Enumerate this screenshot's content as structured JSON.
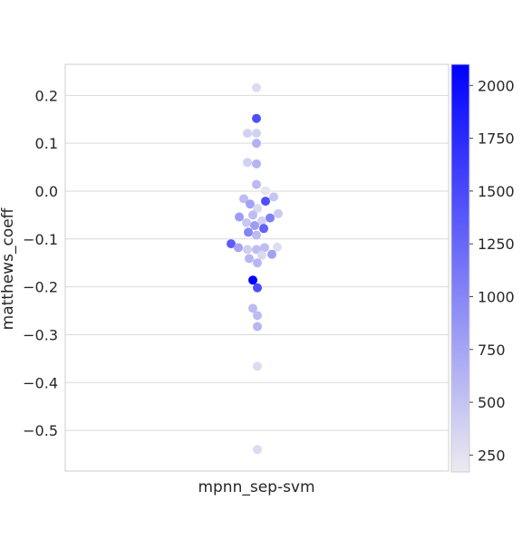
{
  "chart_data": {
    "type": "scatter",
    "subtype": "swarm",
    "category": "mpnn_sep-svm",
    "ylabel": "matthews_coeff",
    "xlabel": "",
    "ylim": [
      -0.585,
      0.265
    ],
    "y_ticks": [
      {
        "value": 0.2,
        "label": "0.2"
      },
      {
        "value": 0.1,
        "label": "0.1"
      },
      {
        "value": 0.0,
        "label": "0.0"
      },
      {
        "value": -0.1,
        "label": "−0.1"
      },
      {
        "value": -0.2,
        "label": "−0.2"
      },
      {
        "value": -0.3,
        "label": "−0.3"
      },
      {
        "value": -0.4,
        "label": "−0.4"
      },
      {
        "value": -0.5,
        "label": "−0.5"
      }
    ],
    "grid": true,
    "colorbar": {
      "range": [
        170,
        2100
      ],
      "ticks": [
        {
          "value": 2000,
          "label": "2000"
        },
        {
          "value": 1750,
          "label": "1750"
        },
        {
          "value": 1500,
          "label": "1500"
        },
        {
          "value": 1250,
          "label": "1250"
        },
        {
          "value": 1000,
          "label": "1000"
        },
        {
          "value": 750,
          "label": "750"
        },
        {
          "value": 500,
          "label": "500"
        },
        {
          "value": 250,
          "label": "250"
        }
      ],
      "color_low": "#ecebf0",
      "color_high": "#0000ff"
    },
    "points": [
      {
        "y": 0.216,
        "c": 300,
        "offset": 0
      },
      {
        "y": 0.152,
        "c": 1450,
        "offset": 0
      },
      {
        "y": 0.121,
        "c": 380,
        "offset": -10
      },
      {
        "y": 0.121,
        "c": 380,
        "offset": 0
      },
      {
        "y": 0.1,
        "c": 650,
        "offset": 0
      },
      {
        "y": 0.06,
        "c": 380,
        "offset": -10
      },
      {
        "y": 0.057,
        "c": 620,
        "offset": 0
      },
      {
        "y": 0.014,
        "c": 570,
        "offset": 0
      },
      {
        "y": 0.001,
        "c": 220,
        "offset": 10
      },
      {
        "y": -0.012,
        "c": 470,
        "offset": 19
      },
      {
        "y": -0.016,
        "c": 560,
        "offset": -14
      },
      {
        "y": -0.021,
        "c": 1450,
        "offset": 10
      },
      {
        "y": -0.027,
        "c": 780,
        "offset": -7
      },
      {
        "y": -0.036,
        "c": 320,
        "offset": 1
      },
      {
        "y": -0.047,
        "c": 440,
        "offset": 24
      },
      {
        "y": -0.05,
        "c": 550,
        "offset": -4
      },
      {
        "y": -0.054,
        "c": 820,
        "offset": -19
      },
      {
        "y": -0.056,
        "c": 1050,
        "offset": 15
      },
      {
        "y": -0.062,
        "c": 380,
        "offset": 6
      },
      {
        "y": -0.066,
        "c": 460,
        "offset": -11
      },
      {
        "y": -0.072,
        "c": 820,
        "offset": -2
      },
      {
        "y": -0.078,
        "c": 1300,
        "offset": 8
      },
      {
        "y": -0.086,
        "c": 1000,
        "offset": -9
      },
      {
        "y": -0.092,
        "c": 560,
        "offset": 0
      },
      {
        "y": -0.11,
        "c": 1350,
        "offset": -28
      },
      {
        "y": -0.117,
        "c": 280,
        "offset": 23
      },
      {
        "y": -0.118,
        "c": 750,
        "offset": -20
      },
      {
        "y": -0.118,
        "c": 550,
        "offset": 9
      },
      {
        "y": -0.122,
        "c": 400,
        "offset": -10
      },
      {
        "y": -0.122,
        "c": 550,
        "offset": 0
      },
      {
        "y": -0.132,
        "c": 780,
        "offset": 17
      },
      {
        "y": -0.134,
        "c": 320,
        "offset": 6
      },
      {
        "y": -0.141,
        "c": 600,
        "offset": -8
      },
      {
        "y": -0.15,
        "c": 600,
        "offset": 1
      },
      {
        "y": -0.186,
        "c": 2100,
        "offset": -4
      },
      {
        "y": -0.202,
        "c": 1450,
        "offset": 1
      },
      {
        "y": -0.245,
        "c": 560,
        "offset": -4
      },
      {
        "y": -0.26,
        "c": 560,
        "offset": 1
      },
      {
        "y": -0.283,
        "c": 600,
        "offset": 1
      },
      {
        "y": -0.366,
        "c": 300,
        "offset": 1
      },
      {
        "y": -0.54,
        "c": 300,
        "offset": 1
      }
    ]
  }
}
